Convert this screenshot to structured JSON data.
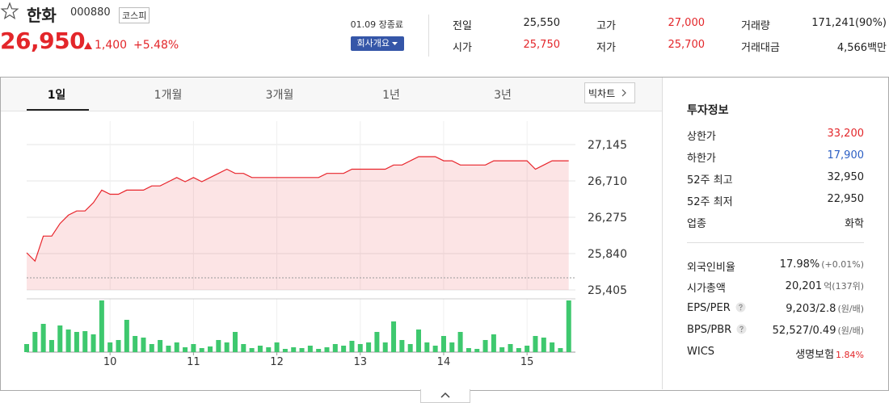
{
  "header": {
    "name": "한화",
    "code": "000880",
    "market": "코스피",
    "price": "26,950",
    "change": "1,400",
    "change_pct": "+5.48%",
    "status": "01.09 장종료",
    "company_button": "회사개요"
  },
  "stats": [
    {
      "label": "전일",
      "value": "25,550"
    },
    {
      "label": "시가",
      "value": "25,750",
      "color": "#e3262a"
    },
    {
      "label": "고가",
      "value": "27,000",
      "color": "#e3262a"
    },
    {
      "label": "저가",
      "value": "25,700",
      "color": "#e3262a"
    },
    {
      "label": "거래량",
      "value": "171,241(90%)"
    },
    {
      "label": "거래대금",
      "value": "4,566백만"
    }
  ],
  "tabs": {
    "items": [
      "1일",
      "1개월",
      "3개월",
      "1년",
      "3년"
    ],
    "active": 0,
    "big_chart": "빅차트"
  },
  "chart_data": {
    "type": "line",
    "x": [
      9.0,
      9.1,
      9.2,
      9.3,
      9.4,
      9.5,
      9.6,
      9.7,
      9.8,
      9.9,
      10.0,
      10.1,
      10.2,
      10.3,
      10.4,
      10.5,
      10.6,
      10.7,
      10.8,
      10.9,
      11.0,
      11.1,
      11.2,
      11.3,
      11.4,
      11.5,
      11.6,
      11.7,
      11.8,
      11.9,
      12.0,
      12.1,
      12.2,
      12.3,
      12.4,
      12.5,
      12.6,
      12.7,
      12.8,
      12.9,
      13.0,
      13.1,
      13.2,
      13.3,
      13.4,
      13.5,
      13.6,
      13.7,
      13.8,
      13.9,
      14.0,
      14.1,
      14.2,
      14.3,
      14.4,
      14.5,
      14.6,
      14.7,
      14.8,
      14.9,
      15.0,
      15.1,
      15.2,
      15.3,
      15.4,
      15.5
    ],
    "series": [
      {
        "color": "#e8242b",
        "values": [
          25850,
          25750,
          26050,
          26050,
          26200,
          26300,
          26350,
          26350,
          26450,
          26600,
          26550,
          26550,
          26600,
          26600,
          26600,
          26650,
          26650,
          26700,
          26750,
          26700,
          26750,
          26700,
          26750,
          26800,
          26850,
          26800,
          26800,
          26750,
          26750,
          26750,
          26750,
          26750,
          26750,
          26750,
          26750,
          26750,
          26800,
          26800,
          26800,
          26850,
          26850,
          26850,
          26850,
          26850,
          26900,
          26900,
          26950,
          27000,
          27000,
          27000,
          26950,
          26950,
          26900,
          26900,
          26900,
          26900,
          26950,
          26950,
          26950,
          26950,
          26950,
          26850,
          26900,
          26950,
          26950,
          26950
        ]
      }
    ],
    "volume": {
      "color": "#3ec86e",
      "ylim": [
        0,
        66
      ],
      "values": [
        10,
        25,
        35,
        15,
        33,
        28,
        25,
        26,
        22,
        64,
        12,
        15,
        40,
        20,
        18,
        10,
        15,
        8,
        12,
        6,
        10,
        5,
        7,
        15,
        12,
        25,
        10,
        5,
        8,
        6,
        12,
        4,
        6,
        5,
        8,
        4,
        6,
        10,
        8,
        14,
        10,
        12,
        25,
        12,
        38,
        15,
        10,
        28,
        12,
        8,
        20,
        12,
        25,
        5,
        4,
        15,
        22,
        6,
        10,
        5,
        8,
        20,
        18,
        12,
        5,
        64
      ]
    },
    "baseline": 25550,
    "xlim": [
      9.0,
      15.58
    ],
    "xticks": [
      10,
      11,
      12,
      13,
      14,
      15
    ],
    "ylim": [
      25405,
      27425
    ],
    "yticks": [
      {
        "value": 25405,
        "label": "25,405"
      },
      {
        "value": 25840,
        "label": "25,840"
      },
      {
        "value": 26275,
        "label": "26,275"
      },
      {
        "value": 26710,
        "label": "26,710"
      },
      {
        "value": 27145,
        "label": "27,145"
      }
    ],
    "grid": true
  },
  "info": {
    "title": "투자정보",
    "groups": [
      [
        {
          "label": "상한가",
          "value": "33,200",
          "color": "#e3262a"
        },
        {
          "label": "하한가",
          "value": "17,900",
          "color": "#2c5fc4"
        },
        {
          "label": "52주 최고",
          "value": "32,950"
        },
        {
          "label": "52주 최저",
          "value": "22,950"
        },
        {
          "label": "업종",
          "value": "화학"
        }
      ],
      [
        {
          "label": "외국인비율",
          "value": "17.98%",
          "note": "(+0.01%)"
        },
        {
          "label": "시가총액",
          "value": "20,201",
          "note": "억(137위)"
        },
        {
          "label": "EPS/PER",
          "help": true,
          "value": "9,203/2.8",
          "note": "(원/배)"
        },
        {
          "label": "BPS/PBR",
          "help": true,
          "value": "52,527/0.49",
          "note": "(원/배)"
        },
        {
          "label": "WICS",
          "value": "생명보험",
          "note": "1.84%",
          "note_color": "#e3262a"
        }
      ]
    ]
  }
}
